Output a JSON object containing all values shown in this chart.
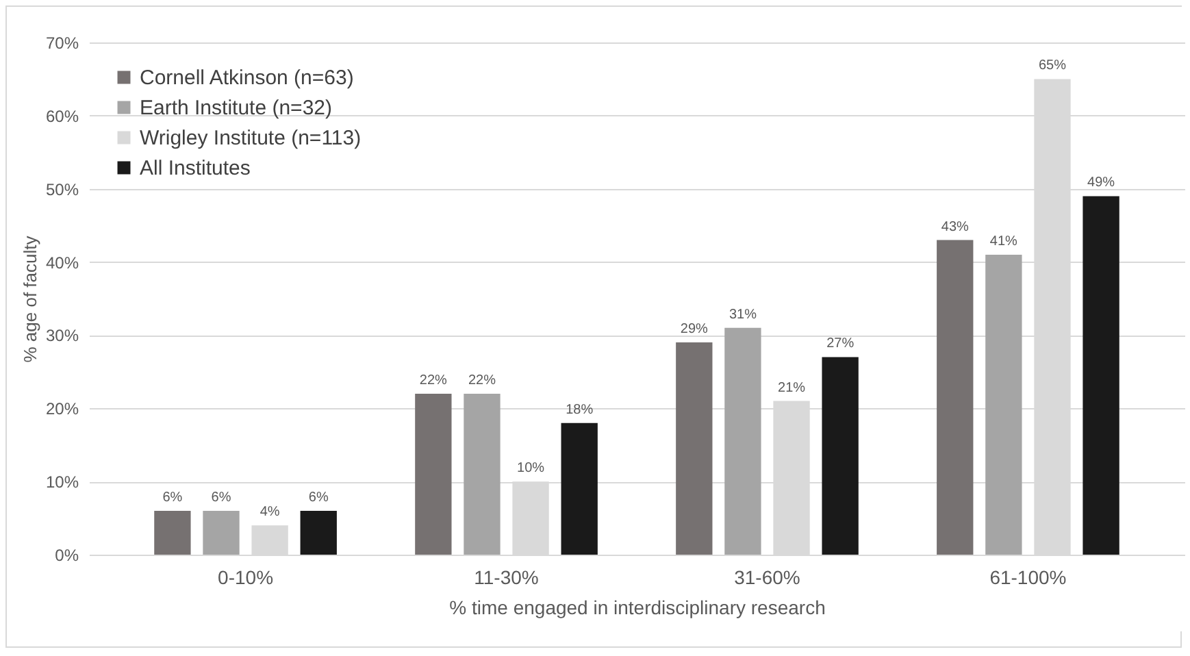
{
  "chart_data": {
    "type": "bar",
    "xlabel": "% time engaged in interdisciplinary research",
    "ylabel": "% age of faculty",
    "categories": [
      "0-10%",
      "11-30%",
      "31-60%",
      "61-100%"
    ],
    "series": [
      {
        "name": "Cornell Atkinson (n=63)",
        "color": "#767171",
        "values": [
          6,
          22,
          29,
          43
        ],
        "value_labels": [
          "6%",
          "22%",
          "29%",
          "43%"
        ]
      },
      {
        "name": "Earth Institute (n=32)",
        "color": "#a5a5a5",
        "values": [
          6,
          22,
          31,
          41
        ],
        "value_labels": [
          "6%",
          "22%",
          "31%",
          "41%"
        ]
      },
      {
        "name": "Wrigley Institute (n=113)",
        "color": "#d9d9d9",
        "values": [
          4,
          10,
          21,
          65
        ],
        "value_labels": [
          "4%",
          "10%",
          "21%",
          "65%"
        ]
      },
      {
        "name": "All Institutes",
        "color": "#1a1a1a",
        "values": [
          6,
          18,
          27,
          49
        ],
        "value_labels": [
          "6%",
          "18%",
          "27%",
          "49%"
        ]
      }
    ],
    "ylim": [
      0,
      70
    ],
    "yticks": [
      {
        "value": 0,
        "label": "0%"
      },
      {
        "value": 10,
        "label": "10%"
      },
      {
        "value": 20,
        "label": "20%"
      },
      {
        "value": 30,
        "label": "30%"
      },
      {
        "value": 40,
        "label": "40%"
      },
      {
        "value": 50,
        "label": "50%"
      },
      {
        "value": 60,
        "label": "60%"
      },
      {
        "value": 70,
        "label": "70%"
      }
    ],
    "grid": "y",
    "legend": "top left"
  }
}
